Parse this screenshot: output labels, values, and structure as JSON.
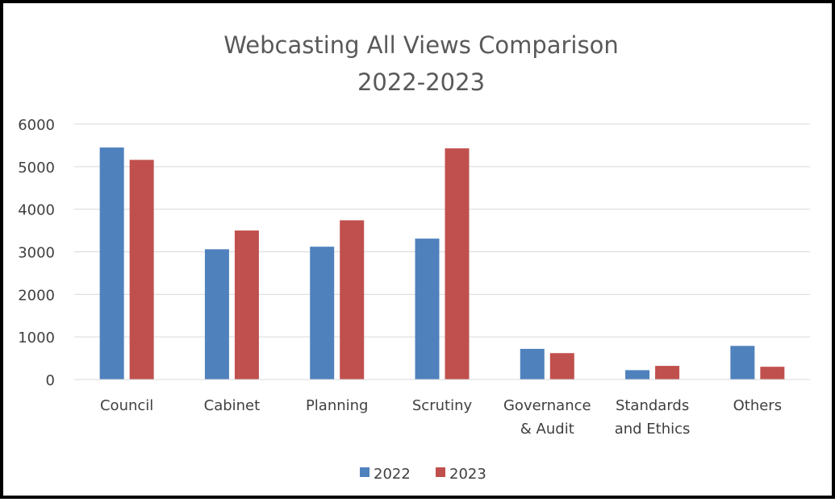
{
  "chart_data": {
    "type": "bar",
    "title_lines": [
      "Webcasting All Views Comparison",
      "2022-2023"
    ],
    "categories": [
      [
        "Council"
      ],
      [
        "Cabinet"
      ],
      [
        "Planning"
      ],
      [
        "Scrutiny"
      ],
      [
        "Governance",
        "& Audit"
      ],
      [
        "Standards",
        "and Ethics"
      ],
      [
        "Others"
      ]
    ],
    "series": [
      {
        "name": "2022",
        "color": "#4f81bd",
        "values": [
          5450,
          3060,
          3120,
          3310,
          720,
          220,
          790
        ]
      },
      {
        "name": "2023",
        "color": "#c0504d",
        "values": [
          5160,
          3500,
          3740,
          5430,
          620,
          320,
          300
        ]
      }
    ],
    "ylim": [
      0,
      6000
    ],
    "yticks": [
      "0",
      "1000",
      "2000",
      "3000",
      "4000",
      "5000",
      "6000"
    ],
    "grid": true,
    "legend_position": "bottom"
  }
}
